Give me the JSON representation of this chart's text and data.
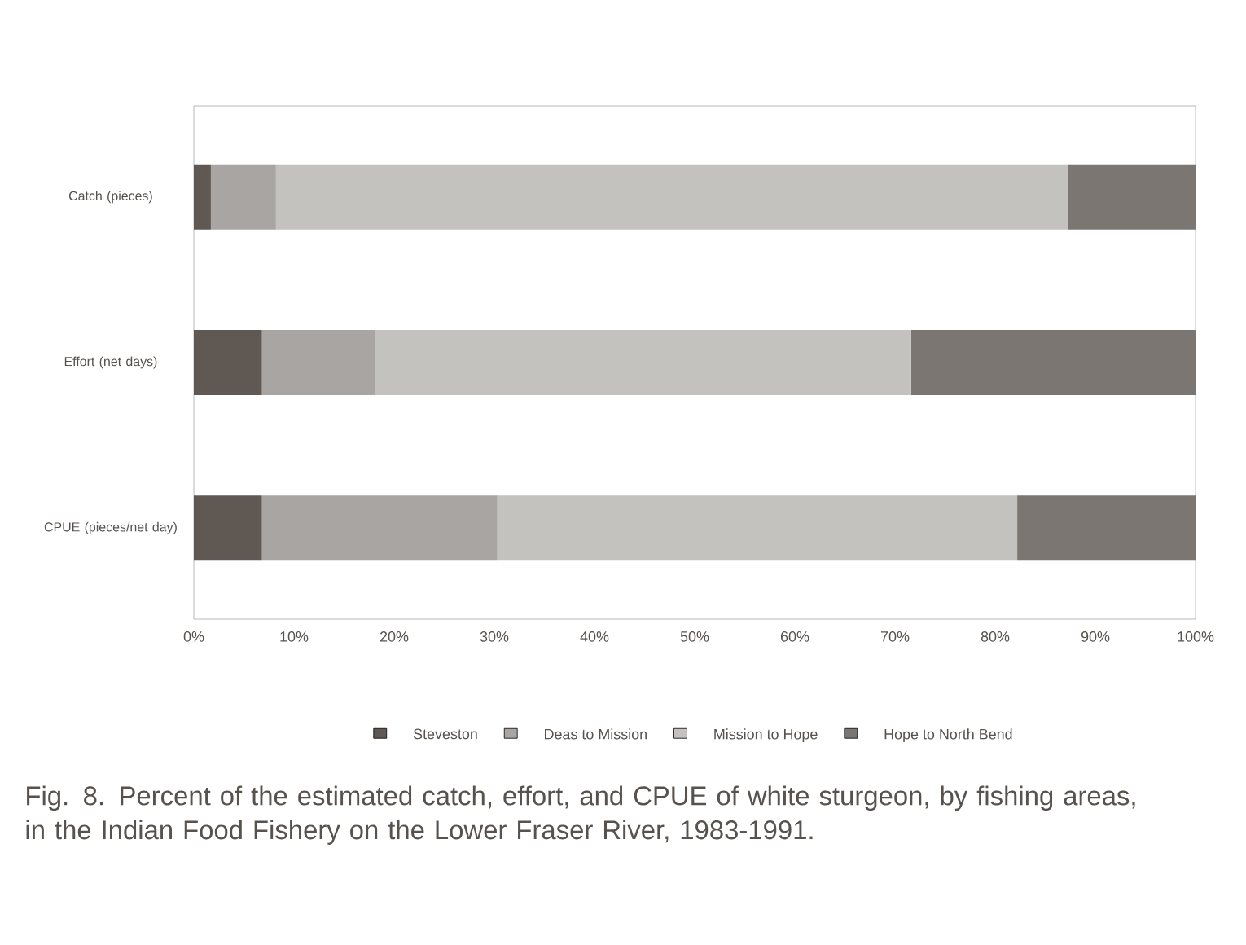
{
  "chart_data": {
    "type": "bar",
    "orientation": "horizontal",
    "stacked": true,
    "categories": [
      "Catch (pieces)",
      "Effort (net days)",
      "CPUE (pieces/net day)"
    ],
    "series": [
      {
        "name": "Steveston",
        "color": "#5f5853",
        "values": [
          1.7,
          6.8,
          6.8
        ]
      },
      {
        "name": "Deas to Mission",
        "color": "#a8a5a2",
        "values": [
          6.5,
          11.3,
          23.5
        ]
      },
      {
        "name": "Mission to Hope",
        "color": "#c4c2bf",
        "values": [
          79.0,
          53.5,
          51.9
        ]
      },
      {
        "name": "Hope to North Bend",
        "color": "#7c7672",
        "values": [
          12.8,
          28.4,
          17.8
        ]
      }
    ],
    "xlim": [
      0,
      100
    ],
    "xticks": [
      {
        "value": 0,
        "label": "0%"
      },
      {
        "value": 10,
        "label": "10%"
      },
      {
        "value": 20,
        "label": "20%"
      },
      {
        "value": 30,
        "label": "30%"
      },
      {
        "value": 40,
        "label": "40%"
      },
      {
        "value": 50,
        "label": "50%"
      },
      {
        "value": 60,
        "label": "60%"
      },
      {
        "value": 70,
        "label": "70%"
      },
      {
        "value": 80,
        "label": "80%"
      },
      {
        "value": 90,
        "label": "90%"
      },
      {
        "value": 100,
        "label": "100%"
      }
    ],
    "legend": "bottom",
    "grid": false,
    "annotations": [
      "Fig. 8. Percent of the estimated catch, effort, and CPUE of white sturgeon, by fishing areas, in the Indian Food Fishery on the Lower Fraser River, 1983-1991."
    ]
  }
}
